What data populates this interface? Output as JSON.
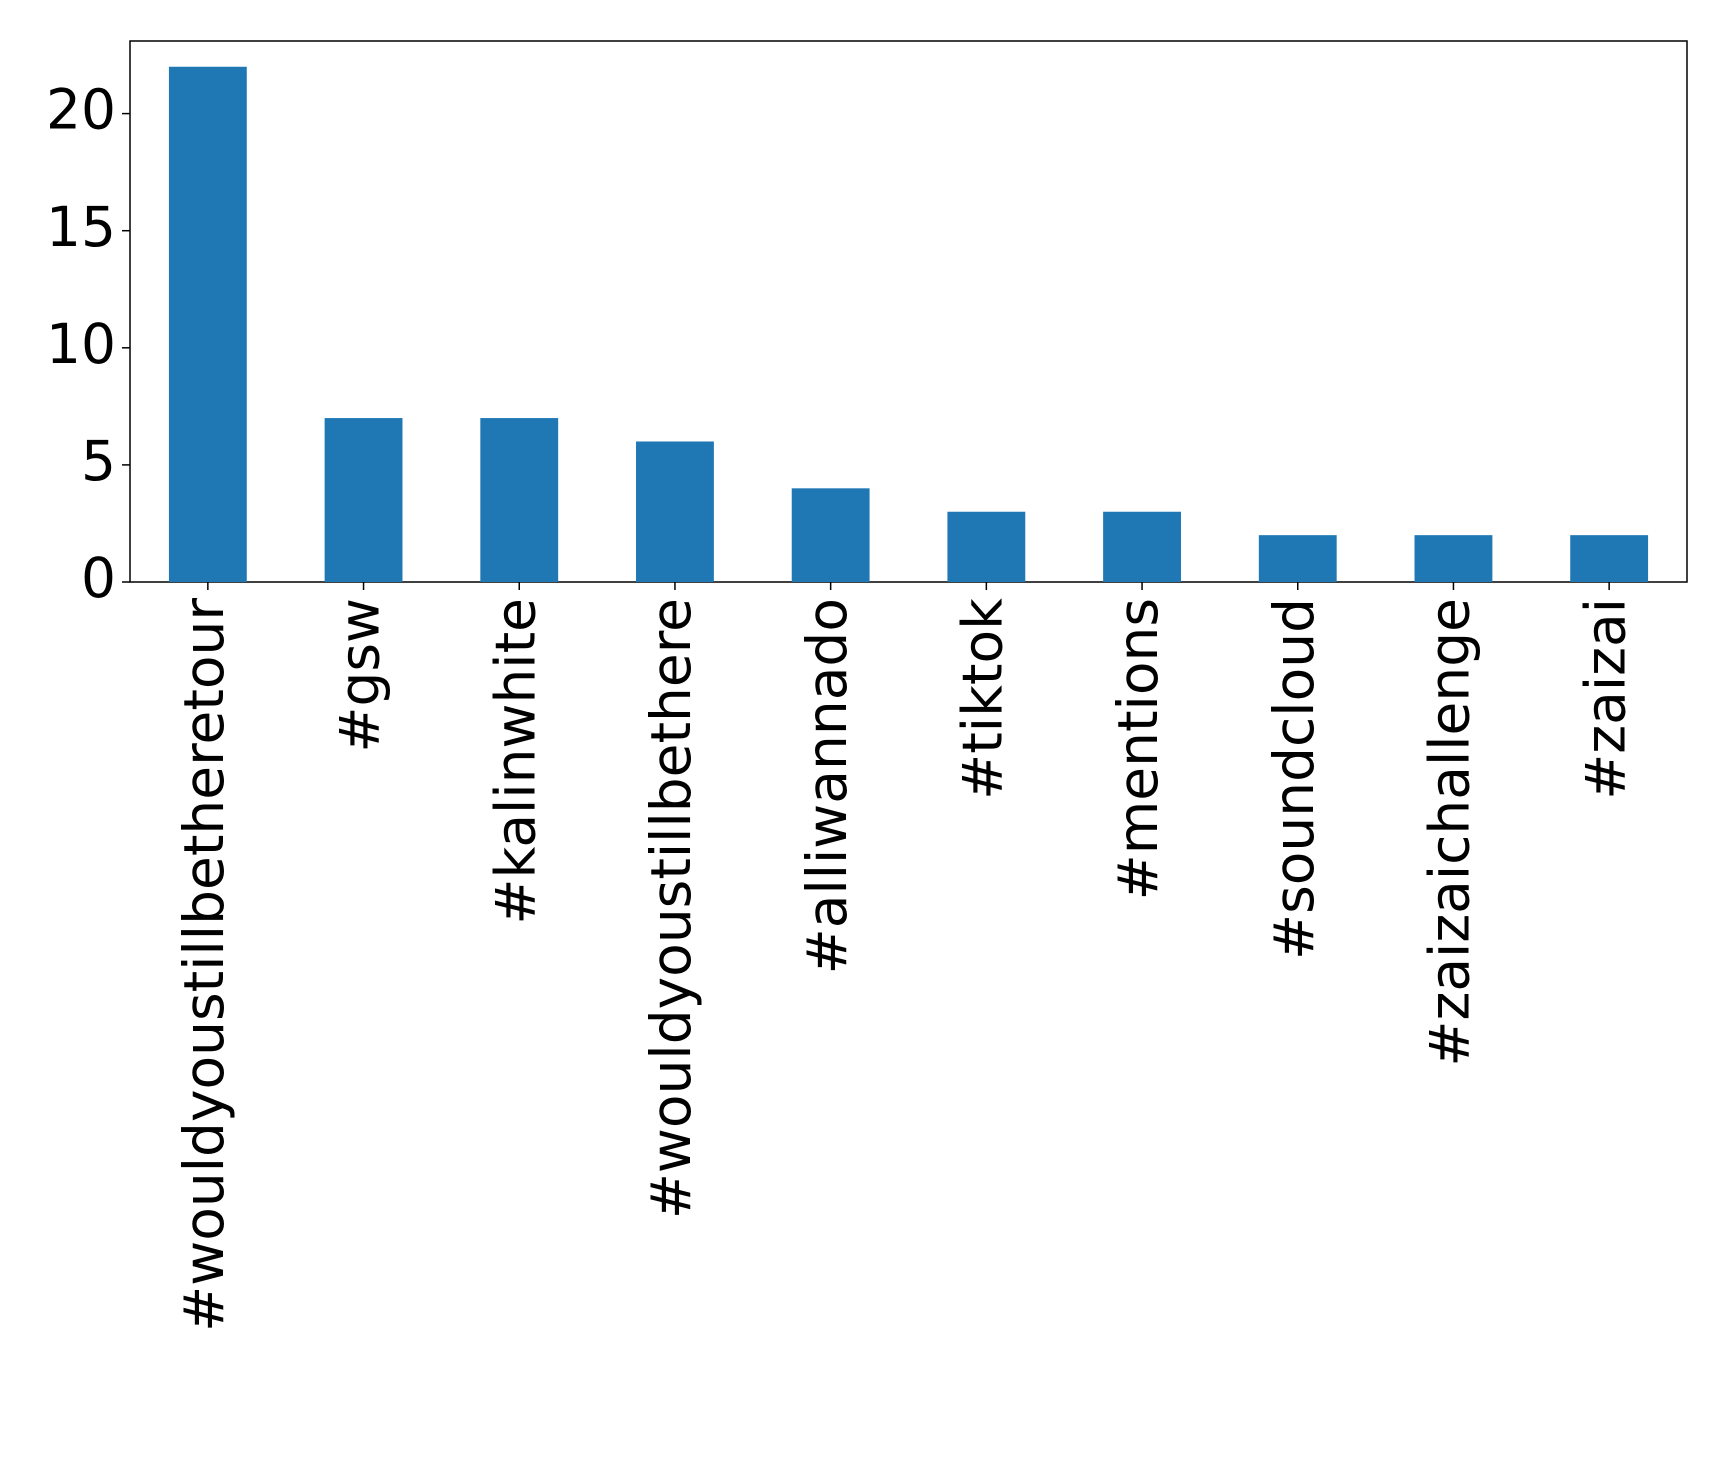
{
  "chart_data": {
    "type": "bar",
    "categories": [
      "#wouldyoustillbetheretour",
      "#gsw",
      "#kalinwhite",
      "#wouldyoustillbethere",
      "#alliwannado",
      "#tiktok",
      "#mentions",
      "#soundcloud",
      "#zaizaichallenge",
      "#zaizai"
    ],
    "values": [
      22,
      7,
      7,
      6,
      4,
      3,
      3,
      2,
      2,
      2
    ],
    "color": "#1f77b4",
    "ylim": [
      0,
      23.1
    ],
    "yticks": [
      0,
      5,
      10,
      15,
      20
    ],
    "grid": false
  }
}
